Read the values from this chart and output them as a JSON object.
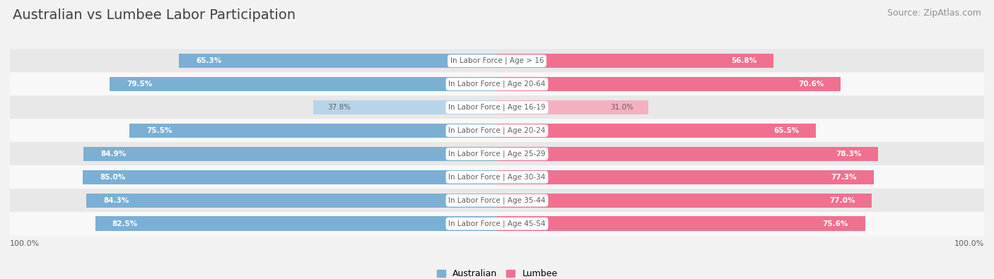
{
  "title": "Australian vs Lumbee Labor Participation",
  "source": "Source: ZipAtlas.com",
  "categories": [
    "In Labor Force | Age > 16",
    "In Labor Force | Age 20-64",
    "In Labor Force | Age 16-19",
    "In Labor Force | Age 20-24",
    "In Labor Force | Age 25-29",
    "In Labor Force | Age 30-34",
    "In Labor Force | Age 35-44",
    "In Labor Force | Age 45-54"
  ],
  "australian_values": [
    65.3,
    79.5,
    37.8,
    75.5,
    84.9,
    85.0,
    84.3,
    82.5
  ],
  "lumbee_values": [
    56.8,
    70.6,
    31.0,
    65.5,
    78.3,
    77.3,
    77.0,
    75.6
  ],
  "australian_color": "#7BAFD4",
  "australian_color_light": "#B8D4E8",
  "lumbee_color": "#F07090",
  "lumbee_color_light": "#F4B0C0",
  "background_color": "#f2f2f2",
  "row_bg_odd": "#e8e8e8",
  "row_bg_even": "#f8f8f8",
  "title_color": "#404040",
  "source_color": "#909090",
  "label_color": "#606060",
  "max_value": 100.0,
  "bar_height": 0.62,
  "title_fontsize": 14,
  "source_fontsize": 9,
  "category_fontsize": 7.5,
  "value_fontsize": 7.5
}
